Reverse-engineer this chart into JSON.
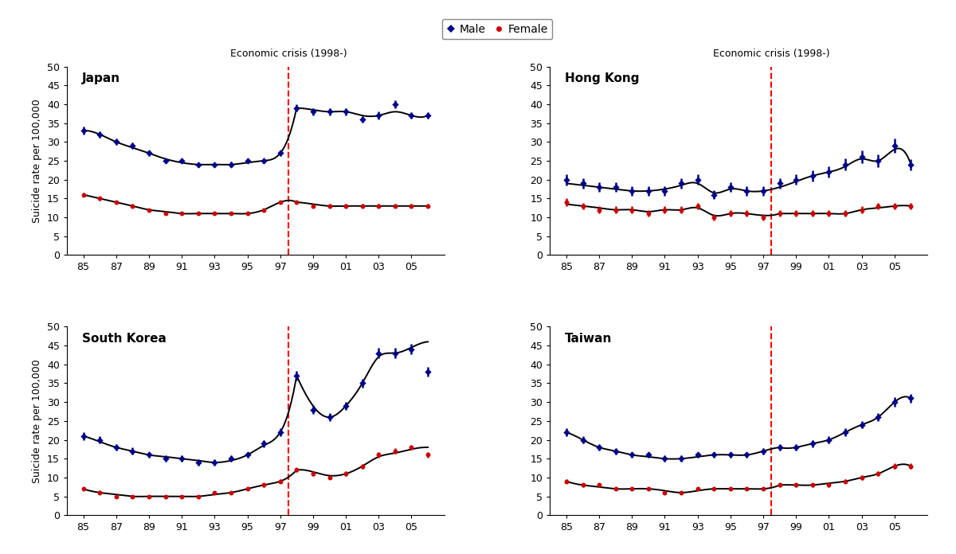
{
  "legend_labels": [
    "Male",
    "Female"
  ],
  "legend_colors": [
    "#00008B",
    "#CC0000"
  ],
  "crisis_label": "Economic crisis (1998-)",
  "ylabel": "Suicide rate per 100,000",
  "bg_color": "#FFFFFF",
  "subplots": {
    "Japan": {
      "years": [
        1985,
        1986,
        1987,
        1988,
        1989,
        1990,
        1991,
        1992,
        1993,
        1994,
        1995,
        1996,
        1997,
        1998,
        1999,
        2000,
        2001,
        2002,
        2003,
        2004,
        2005,
        2006
      ],
      "male": [
        33,
        32,
        30,
        29,
        27,
        25,
        25,
        24,
        24,
        24,
        25,
        25,
        27,
        39,
        38,
        38,
        38,
        36,
        37,
        40,
        37,
        37
      ],
      "male_err": [
        1.0,
        0.8,
        0.8,
        0.8,
        0.7,
        0.7,
        0.7,
        0.6,
        0.6,
        0.7,
        0.7,
        0.7,
        0.7,
        1.0,
        1.0,
        1.0,
        1.0,
        0.9,
        1.0,
        1.0,
        0.9,
        0.9
      ],
      "female": [
        16,
        15,
        14,
        13,
        12,
        11,
        11,
        11,
        11,
        11,
        11,
        12,
        14,
        14,
        13,
        13,
        13,
        13,
        13,
        13,
        13,
        13
      ],
      "female_err": [
        0.6,
        0.5,
        0.5,
        0.5,
        0.4,
        0.4,
        0.4,
        0.4,
        0.4,
        0.4,
        0.4,
        0.4,
        0.5,
        0.5,
        0.5,
        0.5,
        0.5,
        0.5,
        0.5,
        0.5,
        0.5,
        0.5
      ],
      "male_smooth_val": [
        33,
        32,
        30,
        28.5,
        27,
        25.5,
        24.5,
        24,
        24,
        24,
        24.5,
        25,
        27,
        39,
        38.5,
        38,
        38,
        37,
        37,
        38,
        37,
        37
      ],
      "female_smooth_val": [
        16,
        15,
        14,
        13,
        12,
        11.5,
        11,
        11,
        11,
        11,
        11,
        12,
        14,
        14,
        13.5,
        13,
        13,
        13,
        13,
        13,
        13,
        13
      ],
      "split_idx": 13
    },
    "Hong Kong": {
      "years": [
        1985,
        1986,
        1987,
        1988,
        1989,
        1990,
        1991,
        1992,
        1993,
        1994,
        1995,
        1996,
        1997,
        1998,
        1999,
        2000,
        2001,
        2002,
        2003,
        2004,
        2005,
        2006
      ],
      "male": [
        20,
        19,
        18,
        18,
        17,
        17,
        17,
        19,
        20,
        16,
        18,
        17,
        17,
        19,
        20,
        21,
        22,
        24,
        26,
        25,
        29,
        24
      ],
      "male_err": [
        1.5,
        1.3,
        1.3,
        1.3,
        1.2,
        1.2,
        1.2,
        1.3,
        1.4,
        1.2,
        1.3,
        1.2,
        1.2,
        1.4,
        1.4,
        1.5,
        1.5,
        1.6,
        1.7,
        1.6,
        1.8,
        1.5
      ],
      "female": [
        14,
        13,
        12,
        12,
        12,
        11,
        12,
        12,
        13,
        10,
        11,
        11,
        10,
        11,
        11,
        11,
        11,
        11,
        12,
        13,
        13,
        13
      ],
      "female_err": [
        1.0,
        0.9,
        0.9,
        0.9,
        0.9,
        0.8,
        0.9,
        0.9,
        0.9,
        0.8,
        0.8,
        0.8,
        0.8,
        0.8,
        0.8,
        0.8,
        0.8,
        0.8,
        0.9,
        0.9,
        0.9,
        0.9
      ],
      "male_smooth_val": [
        19,
        18.5,
        18,
        17.5,
        17,
        17,
        17.5,
        18.5,
        19,
        16.5,
        17.5,
        17,
        17,
        18,
        19.5,
        21,
        22,
        23.5,
        25.5,
        25,
        28,
        24
      ],
      "female_smooth_val": [
        13.5,
        13,
        12.5,
        12,
        12,
        11.5,
        12,
        12,
        12.5,
        10.5,
        11,
        11,
        10.5,
        11,
        11,
        11,
        11,
        11,
        12,
        12.5,
        13,
        13
      ],
      "split_idx": 13
    },
    "South Korea": {
      "years": [
        1985,
        1986,
        1987,
        1988,
        1989,
        1990,
        1991,
        1992,
        1993,
        1994,
        1995,
        1996,
        1997,
        1998,
        1999,
        2000,
        2001,
        2002,
        2003,
        2004,
        2005,
        2006
      ],
      "male": [
        21,
        20,
        18,
        17,
        16,
        15,
        15,
        14,
        14,
        15,
        16,
        19,
        22,
        37,
        28,
        26,
        29,
        35,
        43,
        43,
        44,
        38
      ],
      "male_err": [
        1.0,
        1.0,
        0.9,
        0.9,
        0.8,
        0.8,
        0.8,
        0.8,
        0.8,
        0.8,
        0.8,
        0.9,
        1.0,
        1.3,
        1.1,
        1.0,
        1.1,
        1.2,
        1.4,
        1.4,
        1.4,
        1.3
      ],
      "female": [
        7,
        6,
        5,
        5,
        5,
        5,
        5,
        5,
        6,
        6,
        7,
        8,
        9,
        12,
        11,
        10,
        11,
        13,
        16,
        17,
        18,
        16
      ],
      "female_err": [
        0.5,
        0.5,
        0.4,
        0.4,
        0.4,
        0.4,
        0.4,
        0.4,
        0.4,
        0.4,
        0.5,
        0.5,
        0.5,
        0.6,
        0.6,
        0.5,
        0.6,
        0.6,
        0.7,
        0.7,
        0.7,
        0.7
      ],
      "male_smooth_val": [
        21,
        19.5,
        18,
        17,
        16,
        15.5,
        15,
        14.5,
        14,
        14.5,
        16,
        18.5,
        22,
        37,
        29,
        26,
        29,
        35,
        42,
        43,
        44.5,
        46
      ],
      "female_smooth_val": [
        7,
        6,
        5.5,
        5,
        5,
        5,
        5,
        5,
        5.5,
        6,
        7,
        8,
        9,
        12,
        11.5,
        10.5,
        11,
        13,
        15.5,
        16.5,
        17.5,
        18
      ],
      "split_idx": 13
    },
    "Taiwan": {
      "years": [
        1985,
        1986,
        1987,
        1988,
        1989,
        1990,
        1991,
        1992,
        1993,
        1994,
        1995,
        1996,
        1997,
        1998,
        1999,
        2000,
        2001,
        2002,
        2003,
        2004,
        2005,
        2006
      ],
      "male": [
        22,
        20,
        18,
        17,
        16,
        16,
        15,
        15,
        16,
        16,
        16,
        16,
        17,
        18,
        18,
        19,
        20,
        22,
        24,
        26,
        30,
        31
      ],
      "male_err": [
        1.0,
        0.9,
        0.9,
        0.8,
        0.8,
        0.8,
        0.8,
        0.8,
        0.8,
        0.8,
        0.8,
        0.8,
        0.8,
        0.9,
        0.9,
        0.9,
        0.9,
        1.0,
        1.0,
        1.1,
        1.2,
        1.2
      ],
      "female": [
        9,
        8,
        8,
        7,
        7,
        7,
        6,
        6,
        7,
        7,
        7,
        7,
        7,
        8,
        8,
        8,
        8,
        9,
        10,
        11,
        13,
        13
      ],
      "female_err": [
        0.6,
        0.5,
        0.5,
        0.5,
        0.5,
        0.5,
        0.4,
        0.4,
        0.5,
        0.5,
        0.5,
        0.5,
        0.5,
        0.5,
        0.5,
        0.5,
        0.5,
        0.5,
        0.6,
        0.6,
        0.7,
        0.7
      ],
      "male_smooth_val": [
        22,
        20,
        18,
        17,
        16,
        15.5,
        15,
        15,
        15.5,
        16,
        16,
        16,
        17,
        18,
        18,
        19,
        20,
        22,
        24,
        26,
        30,
        31
      ],
      "female_smooth_val": [
        9,
        8,
        7.5,
        7,
        7,
        7,
        6.5,
        6,
        6.5,
        7,
        7,
        7,
        7,
        8,
        8,
        8,
        8.5,
        9,
        10,
        11,
        13,
        13
      ],
      "split_idx": 13
    }
  }
}
